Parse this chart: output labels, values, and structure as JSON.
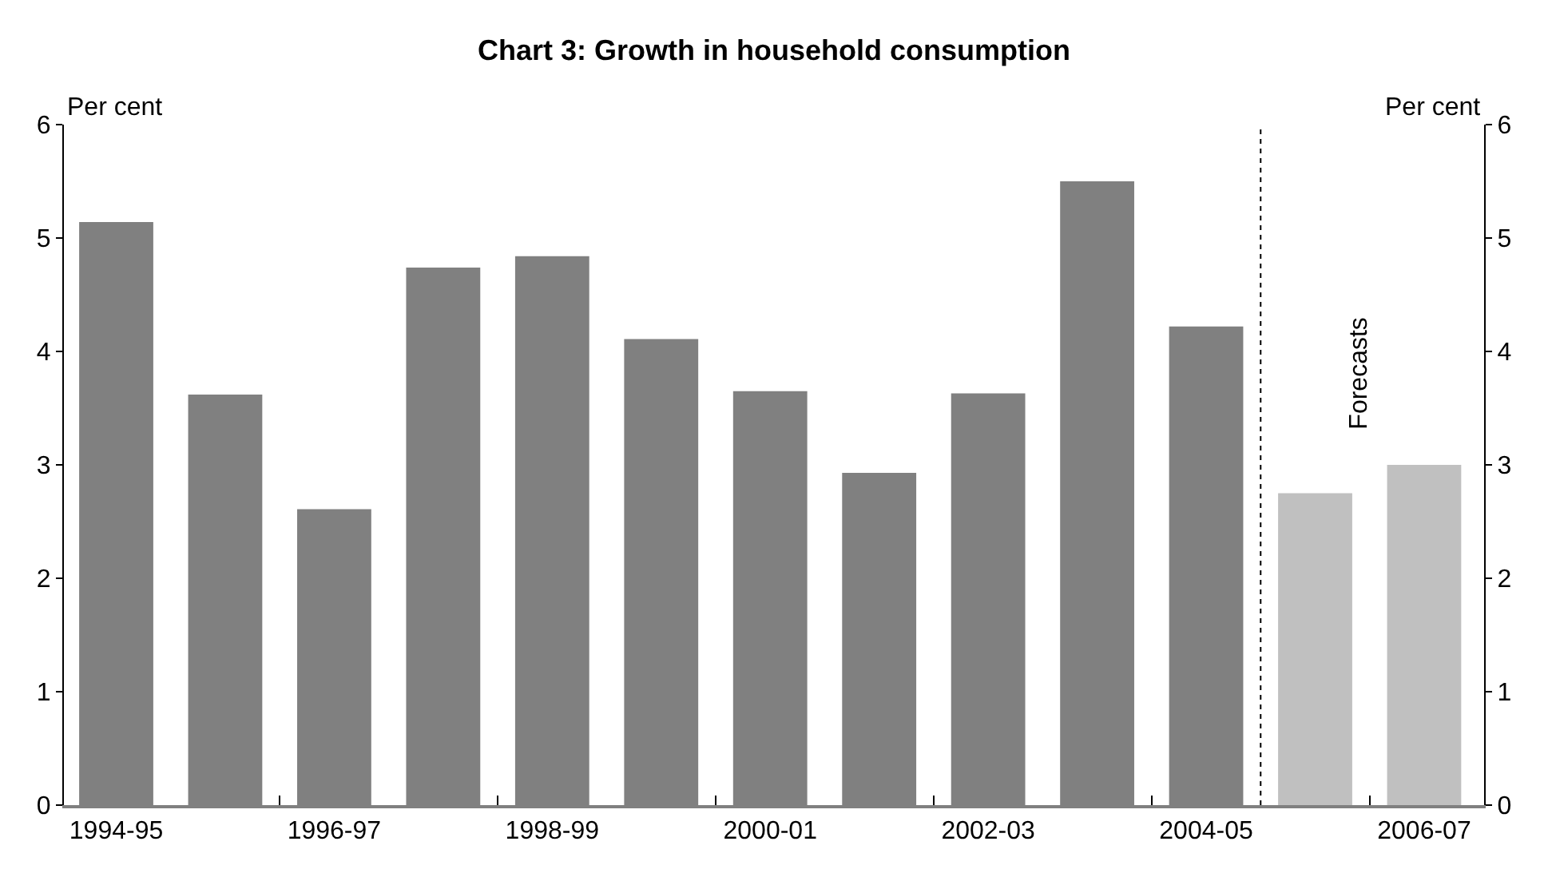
{
  "chart_data": {
    "type": "bar",
    "title": "Chart 3: Growth in household consumption",
    "categories": [
      "1994-95",
      null,
      "1996-97",
      null,
      "1998-99",
      null,
      "2000-01",
      null,
      "2002-03",
      null,
      "2004-05",
      null,
      "2006-07"
    ],
    "values": [
      5.14,
      3.62,
      2.61,
      4.74,
      4.84,
      4.11,
      3.65,
      2.93,
      3.63,
      5.5,
      4.22,
      2.75,
      3.0
    ],
    "colors": [
      "#808080",
      "#808080",
      "#808080",
      "#808080",
      "#808080",
      "#808080",
      "#808080",
      "#808080",
      "#808080",
      "#808080",
      "#808080",
      "#c0c0c0",
      "#c0c0c0"
    ],
    "ylabel": "Per cent",
    "y2label": "Per cent",
    "ylim": [
      0,
      6
    ],
    "yticks": [
      0,
      1,
      2,
      3,
      4,
      5,
      6
    ],
    "y2lim": [
      0,
      6
    ],
    "y2ticks": [
      0,
      1,
      2,
      3,
      4,
      5,
      6
    ],
    "annotations": [
      "Forecasts"
    ],
    "grid": false,
    "legend": false
  }
}
